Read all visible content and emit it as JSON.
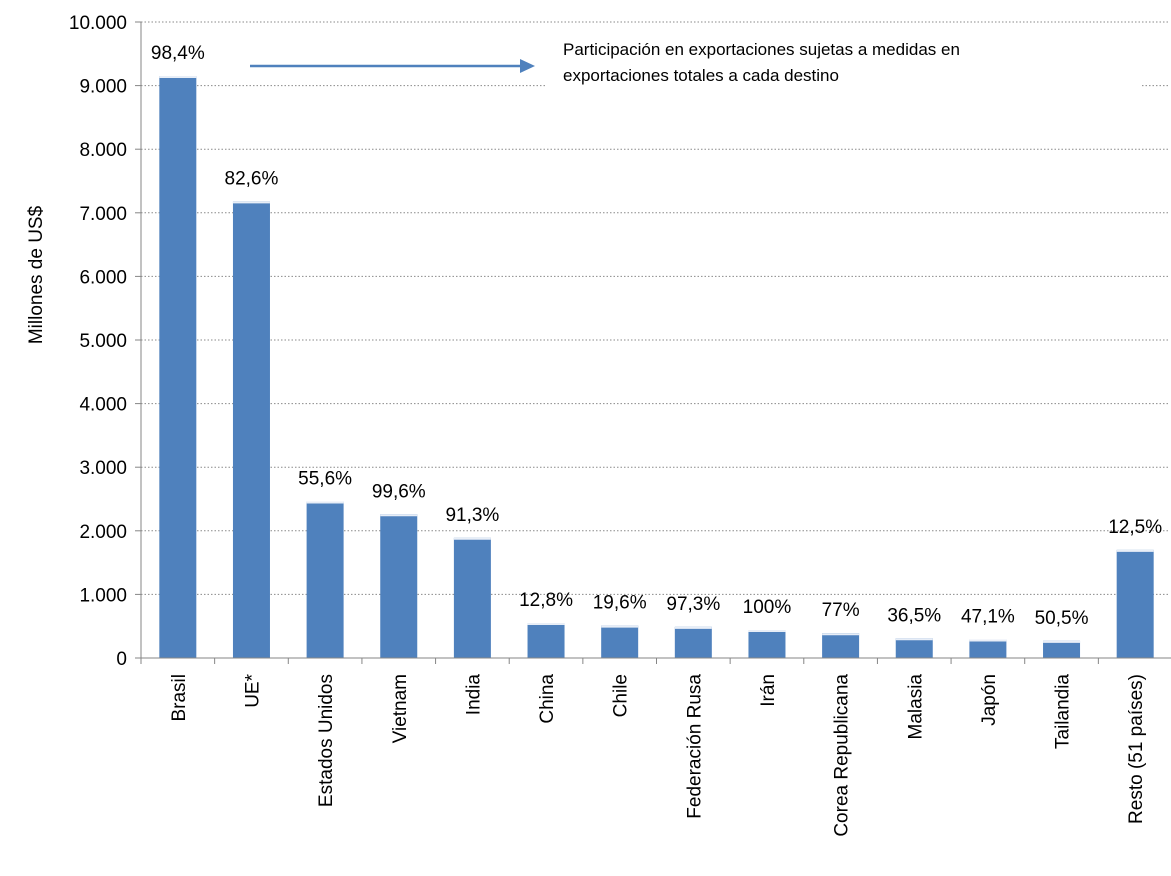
{
  "chart_data": {
    "type": "bar",
    "title": "",
    "xlabel": "",
    "ylabel": "Millones de US$",
    "ylim": [
      0,
      10000
    ],
    "yticks": [
      0,
      1000,
      2000,
      3000,
      4000,
      5000,
      6000,
      7000,
      8000,
      9000,
      10000
    ],
    "ytick_labels": [
      "0",
      "1.000",
      "2.000",
      "3.000",
      "4.000",
      "5.000",
      "6.000",
      "7.000",
      "8.000",
      "9.000",
      "10.000"
    ],
    "grid": true,
    "legend": "none",
    "categories": [
      "Brasil",
      "UE*",
      "Estados Unidos",
      "Vietnam",
      "India",
      "China",
      "Chile",
      "Federación Rusa",
      "Irán",
      "Corea Republicana",
      "Malasia",
      "Japón",
      "Tailandia",
      "Resto (51 países)"
    ],
    "values": [
      9150,
      7180,
      2460,
      2260,
      1890,
      550,
      510,
      490,
      440,
      390,
      310,
      290,
      270,
      1700
    ],
    "data_labels": [
      "98,4%",
      "82,6%",
      "55,6%",
      "99,6%",
      "91,3%",
      "12,8%",
      "19,6%",
      "97,3%",
      "100%",
      "77%",
      "36,5%",
      "47,1%",
      "50,5%",
      "12,5%"
    ],
    "annotation": {
      "lines": [
        "Participación  en exportaciones sujetas a medidas en",
        "exportaciones totales a cada destino"
      ]
    },
    "colors": {
      "bar": "#4f81bd",
      "arrow": "#4f81bd",
      "axis": "#868686",
      "grid": "#8a8a8a"
    }
  }
}
